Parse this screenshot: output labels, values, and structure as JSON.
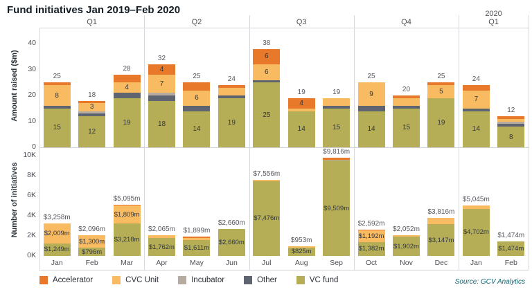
{
  "title": "Fund initiatives Jan 2019–Feb 2020",
  "source": "Source: GCV Analytics",
  "colors": {
    "accelerator": "#e8782a",
    "cvc_unit": "#f9bb61",
    "incubator": "#b5aba0",
    "other": "#5f6570",
    "vc_fund": "#b5ae56"
  },
  "legend": [
    {
      "key": "accelerator",
      "label": "Accelerator"
    },
    {
      "key": "cvc_unit",
      "label": "CVC Unit"
    },
    {
      "key": "incubator",
      "label": "Incubator"
    },
    {
      "key": "other",
      "label": "Other"
    },
    {
      "key": "vc_fund",
      "label": "VC fund"
    }
  ],
  "months": [
    "Jan",
    "Feb",
    "Mar",
    "Apr",
    "May",
    "Jun",
    "Jul",
    "Aug",
    "Sep",
    "Oct",
    "Nov",
    "Dec",
    "Jan",
    "Feb"
  ],
  "groups": [
    {
      "label": "Q1",
      "span": 3
    },
    {
      "label": "Q2",
      "span": 3
    },
    {
      "label": "Q3",
      "span": 3
    },
    {
      "label": "Q4",
      "span": 3
    },
    {
      "label": "Q1",
      "year": "2020",
      "span": 2
    }
  ],
  "chart_data": [
    {
      "type": "bar",
      "stacked": true,
      "ylabel": "Amount raised ($m)",
      "ylim": [
        0,
        40
      ],
      "grid": false,
      "yticks": [
        {
          "v": 0,
          "label": "0"
        },
        {
          "v": 10,
          "label": "10"
        },
        {
          "v": 20,
          "label": "20"
        },
        {
          "v": 30,
          "label": "30"
        },
        {
          "v": 40,
          "label": "40"
        }
      ],
      "bars": [
        {
          "month": "Jan",
          "total": 25,
          "total_label": "25",
          "segments": [
            {
              "key": "vc_fund",
              "value": 15,
              "label": "15"
            },
            {
              "key": "other",
              "value": 1
            },
            {
              "key": "cvc_unit",
              "value": 8,
              "label": "8"
            },
            {
              "key": "accelerator",
              "value": 1
            }
          ]
        },
        {
          "month": "Feb",
          "total": 18,
          "total_label": "18",
          "segments": [
            {
              "key": "vc_fund",
              "value": 12,
              "label": "12"
            },
            {
              "key": "other",
              "value": 1
            },
            {
              "key": "incubator",
              "value": 1
            },
            {
              "key": "cvc_unit",
              "value": 3,
              "label": "3"
            },
            {
              "key": "accelerator",
              "value": 1
            }
          ]
        },
        {
          "month": "Mar",
          "total": 28,
          "total_label": "28",
          "segments": [
            {
              "key": "vc_fund",
              "value": 19,
              "label": "19"
            },
            {
              "key": "other",
              "value": 2
            },
            {
              "key": "cvc_unit",
              "value": 4,
              "label": "4"
            },
            {
              "key": "accelerator",
              "value": 3
            }
          ]
        },
        {
          "month": "Apr",
          "total": 32,
          "total_label": "32",
          "segments": [
            {
              "key": "vc_fund",
              "value": 18,
              "label": "18"
            },
            {
              "key": "other",
              "value": 2
            },
            {
              "key": "incubator",
              "value": 1
            },
            {
              "key": "cvc_unit",
              "value": 7,
              "label": "7"
            },
            {
              "key": "accelerator",
              "value": 4,
              "label": "4"
            }
          ]
        },
        {
          "month": "May",
          "total": 25,
          "total_label": "25",
          "segments": [
            {
              "key": "vc_fund",
              "value": 14,
              "label": "14"
            },
            {
              "key": "other",
              "value": 2
            },
            {
              "key": "cvc_unit",
              "value": 6,
              "label": "6"
            },
            {
              "key": "accelerator",
              "value": 3
            }
          ]
        },
        {
          "month": "Jun",
          "total": 24,
          "total_label": "24",
          "segments": [
            {
              "key": "vc_fund",
              "value": 19,
              "label": "19"
            },
            {
              "key": "other",
              "value": 1
            },
            {
              "key": "cvc_unit",
              "value": 3
            },
            {
              "key": "accelerator",
              "value": 1
            }
          ]
        },
        {
          "month": "Jul",
          "total": 38,
          "total_label": "38",
          "segments": [
            {
              "key": "vc_fund",
              "value": 25,
              "label": "25"
            },
            {
              "key": "other",
              "value": 1
            },
            {
              "key": "cvc_unit",
              "value": 6,
              "label": "6"
            },
            {
              "key": "accelerator",
              "value": 6,
              "label": "6"
            }
          ]
        },
        {
          "month": "Aug",
          "total": 19,
          "total_label": "19",
          "segments": [
            {
              "key": "vc_fund",
              "value": 14,
              "label": "14"
            },
            {
              "key": "cvc_unit",
              "value": 1
            },
            {
              "key": "accelerator",
              "value": 4,
              "label": "4"
            }
          ]
        },
        {
          "month": "Sep",
          "total": 19,
          "total_label": "19",
          "segments": [
            {
              "key": "vc_fund",
              "value": 15,
              "label": "15"
            },
            {
              "key": "other",
              "value": 1
            },
            {
              "key": "cvc_unit",
              "value": 3
            }
          ]
        },
        {
          "month": "Oct",
          "total": 25,
          "total_label": "25",
          "segments": [
            {
              "key": "vc_fund",
              "value": 14,
              "label": "14"
            },
            {
              "key": "other",
              "value": 2
            },
            {
              "key": "cvc_unit",
              "value": 9,
              "label": "9"
            }
          ]
        },
        {
          "month": "Nov",
          "total": 20,
          "total_label": "20",
          "segments": [
            {
              "key": "vc_fund",
              "value": 15,
              "label": "15"
            },
            {
              "key": "other",
              "value": 1
            },
            {
              "key": "cvc_unit",
              "value": 3
            },
            {
              "key": "accelerator",
              "value": 1
            }
          ]
        },
        {
          "month": "Dec",
          "total": 25,
          "total_label": "25",
          "segments": [
            {
              "key": "vc_fund",
              "value": 19,
              "label": "19"
            },
            {
              "key": "cvc_unit",
              "value": 5,
              "label": "5"
            },
            {
              "key": "accelerator",
              "value": 1
            }
          ]
        },
        {
          "month": "Jan",
          "total": 24,
          "total_label": "24",
          "segments": [
            {
              "key": "vc_fund",
              "value": 14,
              "label": "14"
            },
            {
              "key": "other",
              "value": 1
            },
            {
              "key": "cvc_unit",
              "value": 7,
              "label": "7"
            },
            {
              "key": "accelerator",
              "value": 2
            }
          ]
        },
        {
          "month": "Feb",
          "total": 12,
          "total_label": "12",
          "segments": [
            {
              "key": "vc_fund",
              "value": 8,
              "label": "8"
            },
            {
              "key": "other",
              "value": 1
            },
            {
              "key": "incubator",
              "value": 1
            },
            {
              "key": "cvc_unit",
              "value": 1
            },
            {
              "key": "accelerator",
              "value": 1
            }
          ]
        }
      ]
    },
    {
      "type": "bar",
      "stacked": true,
      "ylabel": "Number of initiatives",
      "ylim": [
        0,
        10000
      ],
      "grid": false,
      "yticks": [
        {
          "v": 0,
          "label": "0K"
        },
        {
          "v": 2000,
          "label": "2K"
        },
        {
          "v": 4000,
          "label": "4K"
        },
        {
          "v": 6000,
          "label": "6K"
        },
        {
          "v": 8000,
          "label": "8K"
        },
        {
          "v": 10000,
          "label": "10K"
        }
      ],
      "bars": [
        {
          "month": "Jan",
          "total": 3258,
          "total_label": "$3,258m",
          "segments": [
            {
              "key": "vc_fund",
              "value": 1249,
              "label": "$1,249m"
            },
            {
              "key": "cvc_unit",
              "value": 2009,
              "label": "$2,009m"
            }
          ]
        },
        {
          "month": "Feb",
          "total": 2096,
          "total_label": "$2,096m",
          "segments": [
            {
              "key": "vc_fund",
              "value": 796,
              "label": "$796m"
            },
            {
              "key": "cvc_unit",
              "value": 1300,
              "label": "$1,300m"
            }
          ]
        },
        {
          "month": "Mar",
          "total": 5095,
          "total_label": "$5,095m",
          "segments": [
            {
              "key": "vc_fund",
              "value": 3218,
              "label": "$3,218m"
            },
            {
              "key": "cvc_unit",
              "value": 1809,
              "label": "$1,809m"
            },
            {
              "key": "accelerator",
              "value": 68
            }
          ]
        },
        {
          "month": "Apr",
          "total": 2065,
          "total_label": "$2,065m",
          "segments": [
            {
              "key": "vc_fund",
              "value": 1762,
              "label": "$1,762m"
            },
            {
              "key": "cvc_unit",
              "value": 303
            }
          ]
        },
        {
          "month": "May",
          "total": 1899,
          "total_label": "$1,899m",
          "segments": [
            {
              "key": "vc_fund",
              "value": 1611,
              "label": "$1,611m"
            },
            {
              "key": "cvc_unit",
              "value": 188
            },
            {
              "key": "accelerator",
              "value": 100
            }
          ]
        },
        {
          "month": "Jun",
          "total": 2660,
          "total_label": "$2,660m",
          "segments": [
            {
              "key": "vc_fund",
              "value": 2660,
              "label": "$2,660m"
            }
          ]
        },
        {
          "month": "Jul",
          "total": 7556,
          "total_label": "$7,556m",
          "segments": [
            {
              "key": "vc_fund",
              "value": 7476,
              "label": "$7,476m"
            },
            {
              "key": "cvc_unit",
              "value": 80
            }
          ]
        },
        {
          "month": "Aug",
          "total": 953,
          "total_label": "$953m",
          "segments": [
            {
              "key": "vc_fund",
              "value": 825,
              "label": "$825m"
            },
            {
              "key": "cvc_unit",
              "value": 128
            }
          ]
        },
        {
          "month": "Sep",
          "total": 9816,
          "total_label": "$9,816m",
          "segments": [
            {
              "key": "vc_fund",
              "value": 9509,
              "label": "$9,509m"
            },
            {
              "key": "incubator",
              "value": 107
            },
            {
              "key": "accelerator",
              "value": 200
            }
          ]
        },
        {
          "month": "Oct",
          "total": 2592,
          "total_label": "$2,592m",
          "segments": [
            {
              "key": "vc_fund",
              "value": 1382,
              "label": "$1,382m"
            },
            {
              "key": "cvc_unit",
              "value": 1192,
              "label": "$1,192m"
            },
            {
              "key": "accelerator",
              "value": 18
            }
          ]
        },
        {
          "month": "Nov",
          "total": 2052,
          "total_label": "$2,052m",
          "segments": [
            {
              "key": "vc_fund",
              "value": 1902,
              "label": "$1,902m"
            },
            {
              "key": "cvc_unit",
              "value": 150
            }
          ]
        },
        {
          "month": "Dec",
          "total": 3816,
          "total_label": "$3,816m",
          "segments": [
            {
              "key": "vc_fund",
              "value": 3147,
              "label": "$3,147m"
            },
            {
              "key": "cvc_unit",
              "value": 669
            }
          ]
        },
        {
          "month": "Jan",
          "total": 5045,
          "total_label": "$5,045m",
          "segments": [
            {
              "key": "vc_fund",
              "value": 4702,
              "label": "$4,702m"
            },
            {
              "key": "cvc_unit",
              "value": 343
            }
          ]
        },
        {
          "month": "Feb",
          "total": 1474,
          "total_label": "$1,474m",
          "segments": [
            {
              "key": "vc_fund",
              "value": 1474,
              "label": "$1,474m"
            }
          ]
        }
      ]
    }
  ]
}
